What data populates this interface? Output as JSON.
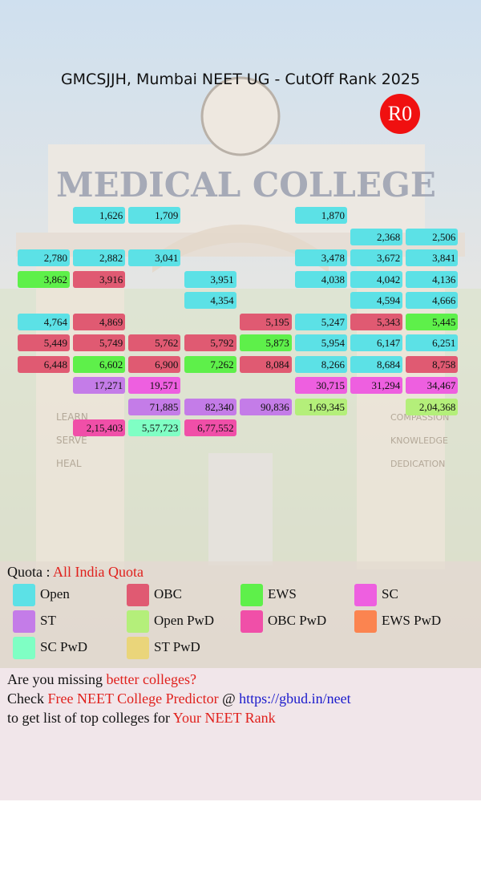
{
  "title": "GMCSJJH, Mumbai NEET UG - CutOff Rank 2025",
  "round": "R0",
  "background_texts": {
    "main": "MEDICAL COLLEGE",
    "left": [
      "LEARN",
      "SERVE",
      "HEAL"
    ],
    "right": [
      "COMPASSION",
      "KNOWLEDGE",
      "DEDICATION"
    ]
  },
  "grid": [
    [
      null,
      {
        "text": "1,626",
        "category": "Open"
      },
      {
        "text": "1,709",
        "category": "Open"
      },
      null,
      null,
      {
        "text": "1,870",
        "category": "Open"
      },
      null,
      null
    ],
    [
      null,
      null,
      null,
      null,
      null,
      null,
      {
        "text": "2,368",
        "category": "Open"
      },
      {
        "text": "2,506",
        "category": "Open"
      }
    ],
    [
      {
        "text": "2,780",
        "category": "Open"
      },
      {
        "text": "2,882",
        "category": "Open"
      },
      {
        "text": "3,041",
        "category": "Open"
      },
      null,
      null,
      {
        "text": "3,478",
        "category": "Open"
      },
      {
        "text": "3,672",
        "category": "Open"
      },
      {
        "text": "3,841",
        "category": "Open"
      }
    ],
    [
      {
        "text": "3,862",
        "category": "EWS"
      },
      {
        "text": "3,916",
        "category": "OBC"
      },
      null,
      {
        "text": "3,951",
        "category": "Open"
      },
      null,
      {
        "text": "4,038",
        "category": "Open"
      },
      {
        "text": "4,042",
        "category": "Open"
      },
      {
        "text": "4,136",
        "category": "Open"
      }
    ],
    [
      null,
      null,
      null,
      {
        "text": "4,354",
        "category": "Open"
      },
      null,
      null,
      {
        "text": "4,594",
        "category": "Open"
      },
      {
        "text": "4,666",
        "category": "Open"
      }
    ],
    [
      {
        "text": "4,764",
        "category": "Open"
      },
      {
        "text": "4,869",
        "category": "OBC"
      },
      null,
      null,
      {
        "text": "5,195",
        "category": "OBC"
      },
      {
        "text": "5,247",
        "category": "Open"
      },
      {
        "text": "5,343",
        "category": "OBC"
      },
      {
        "text": "5,445",
        "category": "EWS"
      }
    ],
    [
      {
        "text": "5,449",
        "category": "OBC"
      },
      {
        "text": "5,749",
        "category": "OBC"
      },
      {
        "text": "5,762",
        "category": "OBC"
      },
      {
        "text": "5,792",
        "category": "OBC"
      },
      {
        "text": "5,873",
        "category": "EWS"
      },
      {
        "text": "5,954",
        "category": "Open"
      },
      {
        "text": "6,147",
        "category": "Open"
      },
      {
        "text": "6,251",
        "category": "Open"
      }
    ],
    [
      {
        "text": "6,448",
        "category": "OBC"
      },
      {
        "text": "6,602",
        "category": "EWS"
      },
      {
        "text": "6,900",
        "category": "OBC"
      },
      {
        "text": "7,262",
        "category": "EWS"
      },
      {
        "text": "8,084",
        "category": "OBC"
      },
      {
        "text": "8,266",
        "category": "Open"
      },
      {
        "text": "8,684",
        "category": "Open"
      },
      {
        "text": "8,758",
        "category": "OBC"
      }
    ],
    [
      null,
      {
        "text": "17,271",
        "category": "ST"
      },
      {
        "text": "19,571",
        "category": "SC"
      },
      null,
      null,
      {
        "text": "30,715",
        "category": "SC"
      },
      {
        "text": "31,294",
        "category": "SC"
      },
      {
        "text": "34,467",
        "category": "SC"
      }
    ],
    [
      null,
      null,
      {
        "text": "71,885",
        "category": "ST"
      },
      {
        "text": "82,340",
        "category": "ST"
      },
      {
        "text": "90,836",
        "category": "ST"
      },
      {
        "text": "1,69,345",
        "category": "Open PwD"
      },
      null,
      {
        "text": "2,04,368",
        "category": "Open PwD"
      }
    ],
    [
      null,
      {
        "text": "2,15,403",
        "category": "OBC PwD"
      },
      {
        "text": "5,57,723",
        "category": "SC PwD"
      },
      {
        "text": "6,77,552",
        "category": "OBC PwD"
      },
      null,
      null,
      null,
      null
    ]
  ],
  "quota": {
    "label": "Quota : ",
    "value": "All India Quota"
  },
  "legend": [
    {
      "name": "Open",
      "color": "#5ce1e6"
    },
    {
      "name": "OBC",
      "color": "#e05a72"
    },
    {
      "name": "EWS",
      "color": "#5ef04a"
    },
    {
      "name": "SC",
      "color": "#ee5fe0"
    },
    {
      "name": "ST",
      "color": "#c47ce8"
    },
    {
      "name": "Open PwD",
      "color": "#b4ef7a"
    },
    {
      "name": "OBC PwD",
      "color": "#f04fa8"
    },
    {
      "name": "EWS PwD",
      "color": "#fb8450"
    },
    {
      "name": "SC PwD",
      "color": "#7fffc4"
    },
    {
      "name": "ST PwD",
      "color": "#ead57a"
    }
  ],
  "promo": [
    [
      {
        "text": "Are you missing ",
        "color": "#111111"
      },
      {
        "text": "better colleges?",
        "color": "#e0201c"
      }
    ],
    [
      {
        "text": "Check ",
        "color": "#111111"
      },
      {
        "text": "Free NEET College Predictor",
        "color": "#e0201c"
      },
      {
        "text": " @ ",
        "color": "#111111"
      },
      {
        "text": "https://gbud.in/neet",
        "color": "#1a1acc"
      }
    ],
    [
      {
        "text": "to get list of top colleges for ",
        "color": "#111111"
      },
      {
        "text": "Your NEET Rank",
        "color": "#e0201c"
      }
    ]
  ]
}
